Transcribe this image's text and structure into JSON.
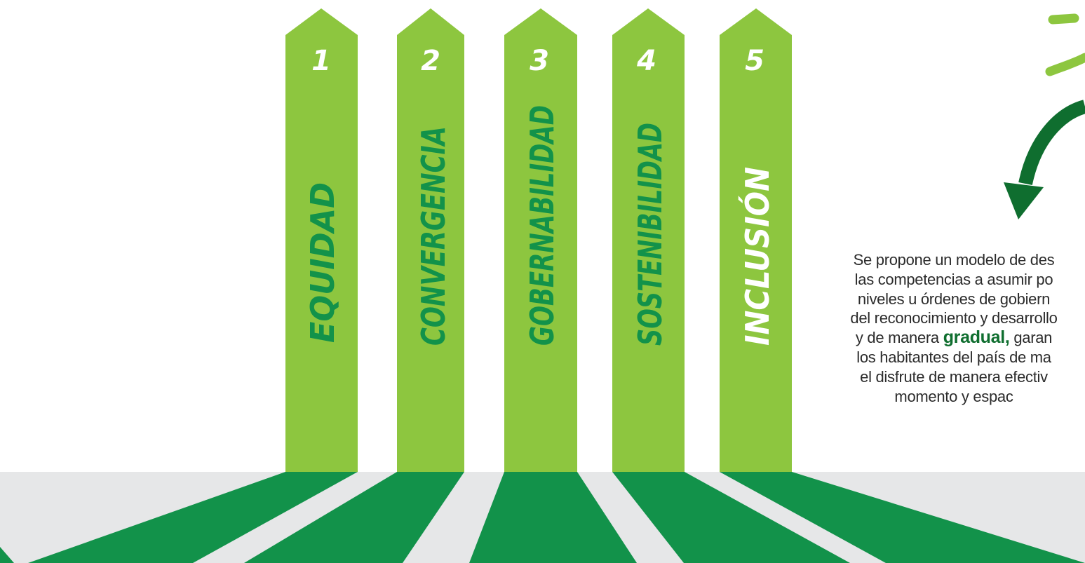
{
  "pillars": [
    {
      "number": "1",
      "label": "EQUIDAD"
    },
    {
      "number": "2",
      "label": "CONVERGENCIA"
    },
    {
      "number": "3",
      "label": "GOBERNABILIDAD"
    },
    {
      "number": "4",
      "label": "SOSTENIBILIDAD"
    },
    {
      "number": "5",
      "label": "INCLUSIÓN"
    }
  ],
  "description": {
    "lines": [
      "Se propone un modelo de des",
      "las competencias a asumir po",
      "niveles u órdenes de gobiern",
      "del reconocimiento y desarrollo",
      "",
      "los habitantes del país  de ma",
      "el disfrute de manera efectiv",
      "momento y espac"
    ],
    "line5_before": "y de manera ",
    "line5_highlight": "gradual,",
    "line5_after": " garan"
  },
  "colors": {
    "pillar_light_green": "#8dc63f",
    "road_green": "#12924a",
    "arrow_dark_green": "#0f6e2f",
    "road_gray": "#e6e7e8",
    "accent_light_green": "#8dc63f",
    "text": "#2b2b2b"
  }
}
